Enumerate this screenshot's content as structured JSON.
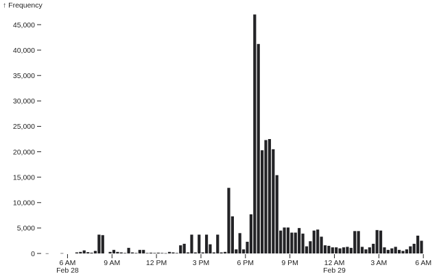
{
  "chart_data": {
    "type": "bar",
    "ylabel": "↑ Frequency",
    "xlabel": "",
    "ylim": [
      0,
      45000
    ],
    "y_ticks": [
      0,
      5000,
      10000,
      15000,
      20000,
      25000,
      30000,
      35000,
      40000,
      45000
    ],
    "y_tick_labels": [
      "0",
      "5,000",
      "10,000",
      "15,000",
      "20,000",
      "25,000",
      "30,000",
      "35,000",
      "40,000",
      "45,000"
    ],
    "x_range_hours": [
      4.5,
      30.5
    ],
    "x_ticks": [
      {
        "hour": 6,
        "label": "6 AM",
        "sublabel": "Feb 28"
      },
      {
        "hour": 9,
        "label": "9 AM",
        "sublabel": ""
      },
      {
        "hour": 12,
        "label": "12 PM",
        "sublabel": ""
      },
      {
        "hour": 15,
        "label": "3 PM",
        "sublabel": ""
      },
      {
        "hour": 18,
        "label": "6 PM",
        "sublabel": ""
      },
      {
        "hour": 21,
        "label": "9 PM",
        "sublabel": ""
      },
      {
        "hour": 24,
        "label": "12 AM",
        "sublabel": "Feb 29"
      },
      {
        "hour": 27,
        "label": "3 AM",
        "sublabel": ""
      },
      {
        "hour": 30,
        "label": "6 AM",
        "sublabel": ""
      }
    ],
    "bin_start_hour": 4.5,
    "bin_width_hours": 0.25,
    "values": [
      20,
      0,
      0,
      0,
      50,
      0,
      0,
      0,
      200,
      300,
      600,
      250,
      150,
      500,
      3700,
      3600,
      0,
      300,
      700,
      300,
      200,
      100,
      1100,
      200,
      100,
      700,
      700,
      100,
      150,
      100,
      150,
      100,
      50,
      300,
      200,
      100,
      1600,
      1900,
      200,
      3700,
      200,
      3700,
      200,
      3700,
      1800,
      200,
      3700,
      200,
      300,
      12900,
      7300,
      800,
      4000,
      800,
      2300,
      7700,
      47000,
      41200,
      20300,
      22300,
      22500,
      20500,
      15400,
      4500,
      5100,
      5100,
      4100,
      4100,
      5000,
      3900,
      1400,
      2400,
      4500,
      4700,
      3300,
      1600,
      1500,
      1200,
      1200,
      1000,
      1200,
      1300,
      1100,
      4400,
      4400,
      1300,
      800,
      1200,
      1900,
      4600,
      4500,
      1200,
      700,
      1000,
      1300,
      700,
      500,
      800,
      1400,
      1900,
      3500,
      2500
    ]
  }
}
